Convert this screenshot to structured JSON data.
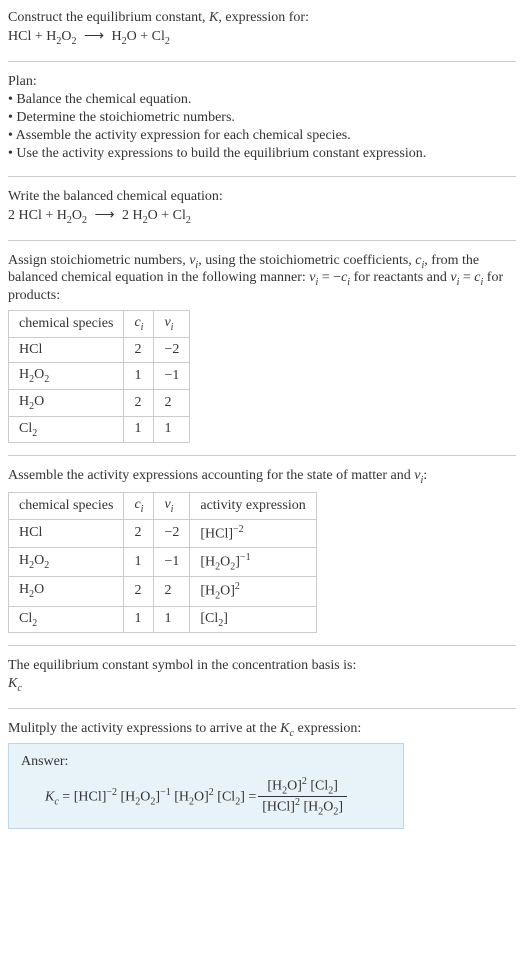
{
  "intro": {
    "line1_a": "Construct the equilibrium constant, ",
    "line1_k": "K",
    "line1_b": ", expression for:",
    "eq_left_1": "HCl + H",
    "eq_left_2": "O",
    "eq_arrow": "⟶",
    "eq_right_1": "H",
    "eq_right_2": "O + Cl"
  },
  "plan": {
    "title": "Plan:",
    "b1": "• Balance the chemical equation.",
    "b2": "• Determine the stoichiometric numbers.",
    "b3": "• Assemble the activity expression for each chemical species.",
    "b4": "• Use the activity expressions to build the equilibrium constant expression."
  },
  "balanced": {
    "title": "Write the balanced chemical equation:",
    "left_1": "2 HCl + H",
    "left_2": "O",
    "arrow": "⟶",
    "right_1": "2 H",
    "right_2": "O + Cl"
  },
  "assign": {
    "part1": "Assign stoichiometric numbers, ",
    "nu": "ν",
    "i": "i",
    "part2": ", using the stoichiometric coefficients, ",
    "c": "c",
    "part3": ", from the balanced chemical equation in the following manner: ",
    "eq1a": " = −",
    "part4": " for reactants and ",
    "eq2a": " = ",
    "part5": " for products:",
    "table": {
      "h1": "chemical species",
      "h2_c": "c",
      "h2_i": "i",
      "h3_n": "ν",
      "h3_i": "i",
      "rows": [
        {
          "sp_a": "HCl",
          "sp_b": "",
          "sp_c": "",
          "c": "2",
          "v": "−2"
        },
        {
          "sp_a": "H",
          "sp_b": "2",
          "sp_c": "O",
          "sp_d": "2",
          "c": "1",
          "v": "−1"
        },
        {
          "sp_a": "H",
          "sp_b": "2",
          "sp_c": "O",
          "sp_d": "",
          "c": "2",
          "v": "2"
        },
        {
          "sp_a": "Cl",
          "sp_b": "2",
          "sp_c": "",
          "sp_d": "",
          "c": "1",
          "v": "1"
        }
      ]
    }
  },
  "activity": {
    "intro_a": "Assemble the activity expressions accounting for the state of matter and ",
    "nu": "ν",
    "i": "i",
    "intro_b": ":",
    "table": {
      "h1": "chemical species",
      "h2_c": "c",
      "h2_i": "i",
      "h3_n": "ν",
      "h3_i": "i",
      "h4": "activity expression",
      "rows": [
        {
          "sp": "HCl",
          "c": "2",
          "v": "−2",
          "ae_a": "[HCl]",
          "ae_exp": "−2"
        },
        {
          "sp": "H",
          "sp2": "2",
          "sp3": "O",
          "sp4": "2",
          "c": "1",
          "v": "−1",
          "ae_a": "[H",
          "ae_b": "2",
          "ae_c": "O",
          "ae_d": "2",
          "ae_e": "]",
          "ae_exp": "−1"
        },
        {
          "sp": "H",
          "sp2": "2",
          "sp3": "O",
          "sp4": "",
          "c": "2",
          "v": "2",
          "ae_a": "[H",
          "ae_b": "2",
          "ae_c": "O]",
          "ae_exp": "2"
        },
        {
          "sp": "Cl",
          "sp2": "2",
          "c": "1",
          "v": "1",
          "ae_a": "[Cl",
          "ae_b": "2",
          "ae_c": "]",
          "ae_exp": ""
        }
      ]
    }
  },
  "symbol": {
    "line1": "The equilibrium constant symbol in the concentration basis is:",
    "K": "K",
    "c": "c"
  },
  "multiply": {
    "part1": "Mulitply the activity expressions to arrive at the ",
    "K": "K",
    "c": "c",
    "part2": " expression:"
  },
  "answer": {
    "label": "Answer:",
    "K": "K",
    "c": "c",
    "eq": " = ",
    "t1": "[HCl]",
    "e1": "−2",
    "t2": " [H",
    "t2b": "O",
    "t2e": "]",
    "e2": "−1",
    "t3": " [H",
    "t3b": "O]",
    "e3": "2",
    "t4": " [Cl",
    "t4b": "]",
    "eq2": " = ",
    "num_a": "[H",
    "num_b": "O]",
    "num_exp": "2",
    "num_c": " [Cl",
    "num_d": "]",
    "den_a": "[HCl]",
    "den_exp": "2",
    "den_b": " [H",
    "den_c": "O",
    "den_d": "]"
  },
  "subs": {
    "two": "2"
  }
}
